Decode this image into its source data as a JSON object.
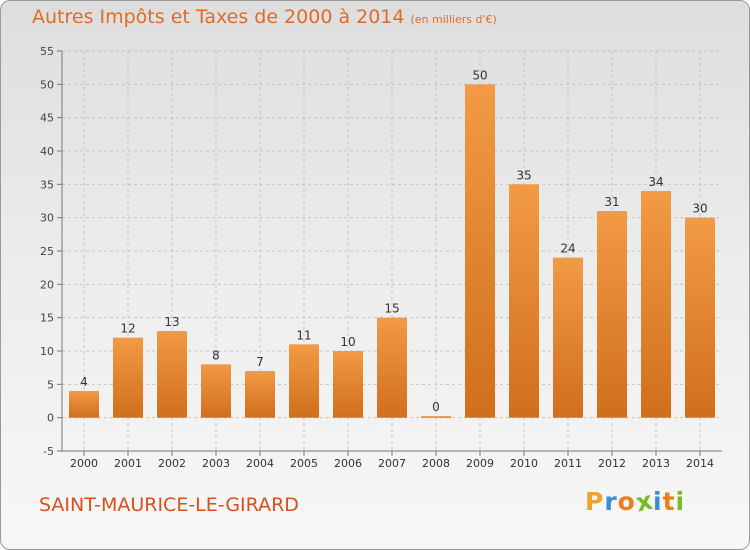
{
  "header": {
    "title": "Autres Impôts et Taxes de 2000 à 2014",
    "subtitle": "(en milliers d'€)"
  },
  "footer": {
    "commune": "SAINT-MAURICE-LE-GIRARD",
    "logo_letters": [
      "P",
      "r",
      "o",
      "x",
      "i",
      "t",
      "i"
    ],
    "logo_colors": [
      "#f0a22e",
      "#3b8fd1",
      "#ef7d1a",
      "#7bb928",
      "#3b8fd1",
      "#ef7d1a",
      "#7bb928"
    ]
  },
  "chart_data": {
    "type": "bar",
    "categories": [
      "2000",
      "2001",
      "2002",
      "2003",
      "2004",
      "2005",
      "2006",
      "2007",
      "2008",
      "2009",
      "2010",
      "2011",
      "2012",
      "2013",
      "2014"
    ],
    "values": [
      4,
      12,
      13,
      8,
      7,
      11,
      10,
      15,
      0,
      50,
      35,
      24,
      31,
      34,
      30
    ],
    "ylim": [
      -5,
      55
    ],
    "yticks": [
      -5,
      0,
      5,
      10,
      15,
      20,
      25,
      30,
      35,
      40,
      45,
      50,
      55
    ],
    "grid": true,
    "bar_color": "#f29a44",
    "bar_color_dark": "#d06f1c"
  }
}
